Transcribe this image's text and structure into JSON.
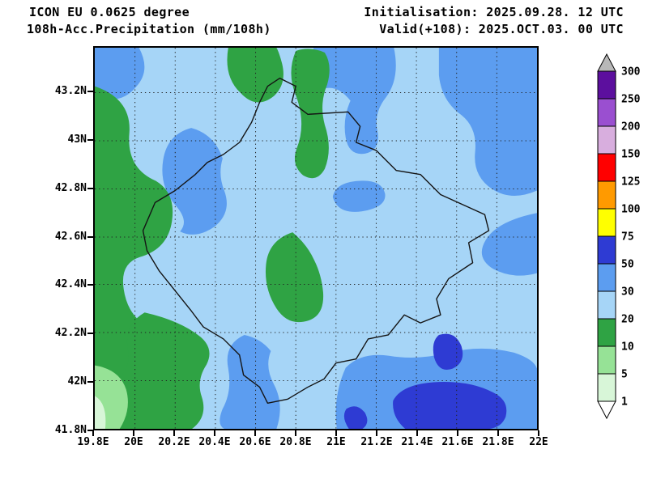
{
  "header": {
    "model_line": "ICON EU 0.0625 degree",
    "product_line": "108h-Acc.Precipitation (mm/108h)",
    "init_line": "Initialisation: 2025.09.28. 12 UTC",
    "valid_line": "Valid(+108): 2025.OCT.03. 00 UTC"
  },
  "map": {
    "units": "mm/108h",
    "y_ticks": [
      "43.2N",
      "43N",
      "42.8N",
      "42.6N",
      "42.4N",
      "42.2N",
      "42N",
      "41.8N"
    ],
    "x_ticks": [
      "19.8E",
      "20E",
      "20.2E",
      "20.4E",
      "20.6E",
      "20.8E",
      "21E",
      "21.2E",
      "21.4E",
      "21.6E",
      "21.8E",
      "22E"
    ]
  },
  "colorbar": {
    "levels": [
      "300",
      "250",
      "200",
      "150",
      "125",
      "100",
      "75",
      "50",
      "30",
      "20",
      "10",
      "5",
      "1"
    ],
    "segment_colors_top_to_bottom": [
      "#5c0f9e",
      "#9a4fd0",
      "#d8aede",
      "#ff0000",
      "#ff9a00",
      "#ffff00",
      "#2e3bd3",
      "#5c9df0",
      "#a6d5f7",
      "#2fa344",
      "#96e296",
      "#d8f6d8"
    ],
    "overflow_color": "#b8b8b8",
    "underflow_color": "#ffffff"
  },
  "palette": {
    "pale_green": "#d8f6d8",
    "light_green": "#96e296",
    "green": "#2fa344",
    "light_blue": "#a6d5f7",
    "medium_blue": "#5c9df0",
    "royal_blue": "#2e3bd3"
  }
}
